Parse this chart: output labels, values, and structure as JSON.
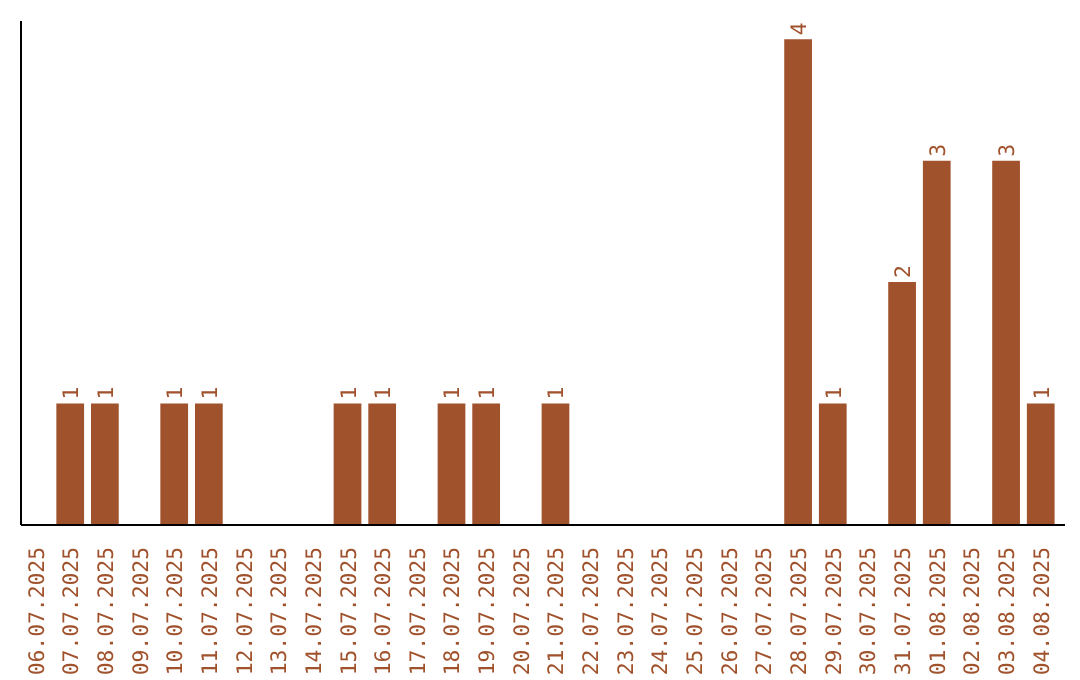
{
  "chart_data": {
    "type": "bar",
    "categories": [
      "06.07.2025",
      "07.07.2025",
      "08.07.2025",
      "09.07.2025",
      "10.07.2025",
      "11.07.2025",
      "12.07.2025",
      "13.07.2025",
      "14.07.2025",
      "15.07.2025",
      "16.07.2025",
      "17.07.2025",
      "18.07.2025",
      "19.07.2025",
      "20.07.2025",
      "21.07.2025",
      "22.07.2025",
      "23.07.2025",
      "24.07.2025",
      "25.07.2025",
      "26.07.2025",
      "27.07.2025",
      "28.07.2025",
      "29.07.2025",
      "30.07.2025",
      "31.07.2025",
      "01.08.2025",
      "02.08.2025",
      "03.08.2025",
      "04.08.2025"
    ],
    "values": [
      0,
      1,
      1,
      0,
      1,
      1,
      0,
      0,
      0,
      1,
      1,
      0,
      1,
      1,
      0,
      1,
      0,
      0,
      0,
      0,
      0,
      0,
      4,
      1,
      0,
      2,
      3,
      0,
      3,
      1
    ],
    "value_labels": [
      null,
      "1",
      "1",
      null,
      "1",
      "1",
      null,
      null,
      null,
      "1",
      "1",
      null,
      "1",
      "1",
      null,
      "1",
      null,
      null,
      null,
      null,
      null,
      null,
      "4",
      "1",
      null,
      "2",
      "3",
      null,
      "3",
      "1"
    ],
    "color": "#a0522d",
    "ylim": [
      0,
      4.15
    ],
    "tick_labels": "x",
    "grid": false
  }
}
